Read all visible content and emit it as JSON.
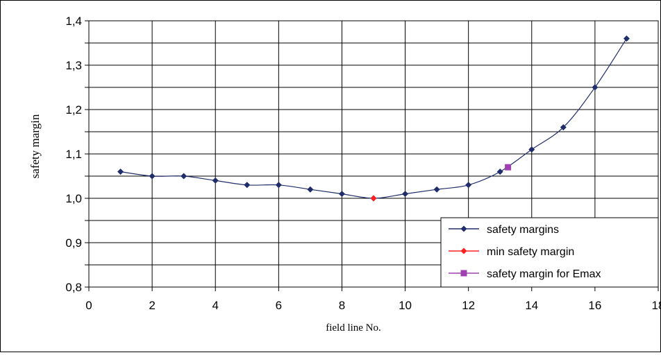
{
  "chart_data": {
    "type": "line",
    "xlabel": "field line No.",
    "ylabel": "safety margin",
    "xlim": [
      0,
      18
    ],
    "ylim": [
      0.8,
      1.4
    ],
    "x_ticks": [
      0,
      2,
      4,
      6,
      8,
      10,
      12,
      14,
      16,
      18
    ],
    "x_tick_labels": [
      "0",
      "2",
      "4",
      "6",
      "8",
      "10",
      "12",
      "14",
      "16",
      "18"
    ],
    "y_ticks": [
      0.8,
      0.9,
      1.0,
      1.1,
      1.2,
      1.3,
      1.4
    ],
    "y_tick_labels": [
      "0,8",
      "0,9",
      "1,0",
      "1,1",
      "1,2",
      "1,3",
      "1,4"
    ],
    "grid": true,
    "legend_position": "bottom-right",
    "series": [
      {
        "name": "safety margins",
        "color": "#1f2d6b",
        "marker": "diamond",
        "x": [
          1,
          2,
          3,
          4,
          5,
          6,
          7,
          8,
          9,
          10,
          11,
          12,
          13,
          14,
          15,
          16,
          17
        ],
        "y": [
          1.06,
          1.05,
          1.05,
          1.04,
          1.03,
          1.03,
          1.02,
          1.01,
          1.0,
          1.01,
          1.02,
          1.03,
          1.06,
          1.11,
          1.16,
          1.25,
          1.36
        ]
      },
      {
        "name": "min safety margin",
        "color": "#ff2020",
        "marker": "diamond",
        "x": [
          9
        ],
        "y": [
          1.0
        ]
      },
      {
        "name": "safety margin for Emax",
        "color": "#a040b0",
        "marker": "square",
        "x": [
          13.25
        ],
        "y": [
          1.07
        ]
      }
    ]
  }
}
